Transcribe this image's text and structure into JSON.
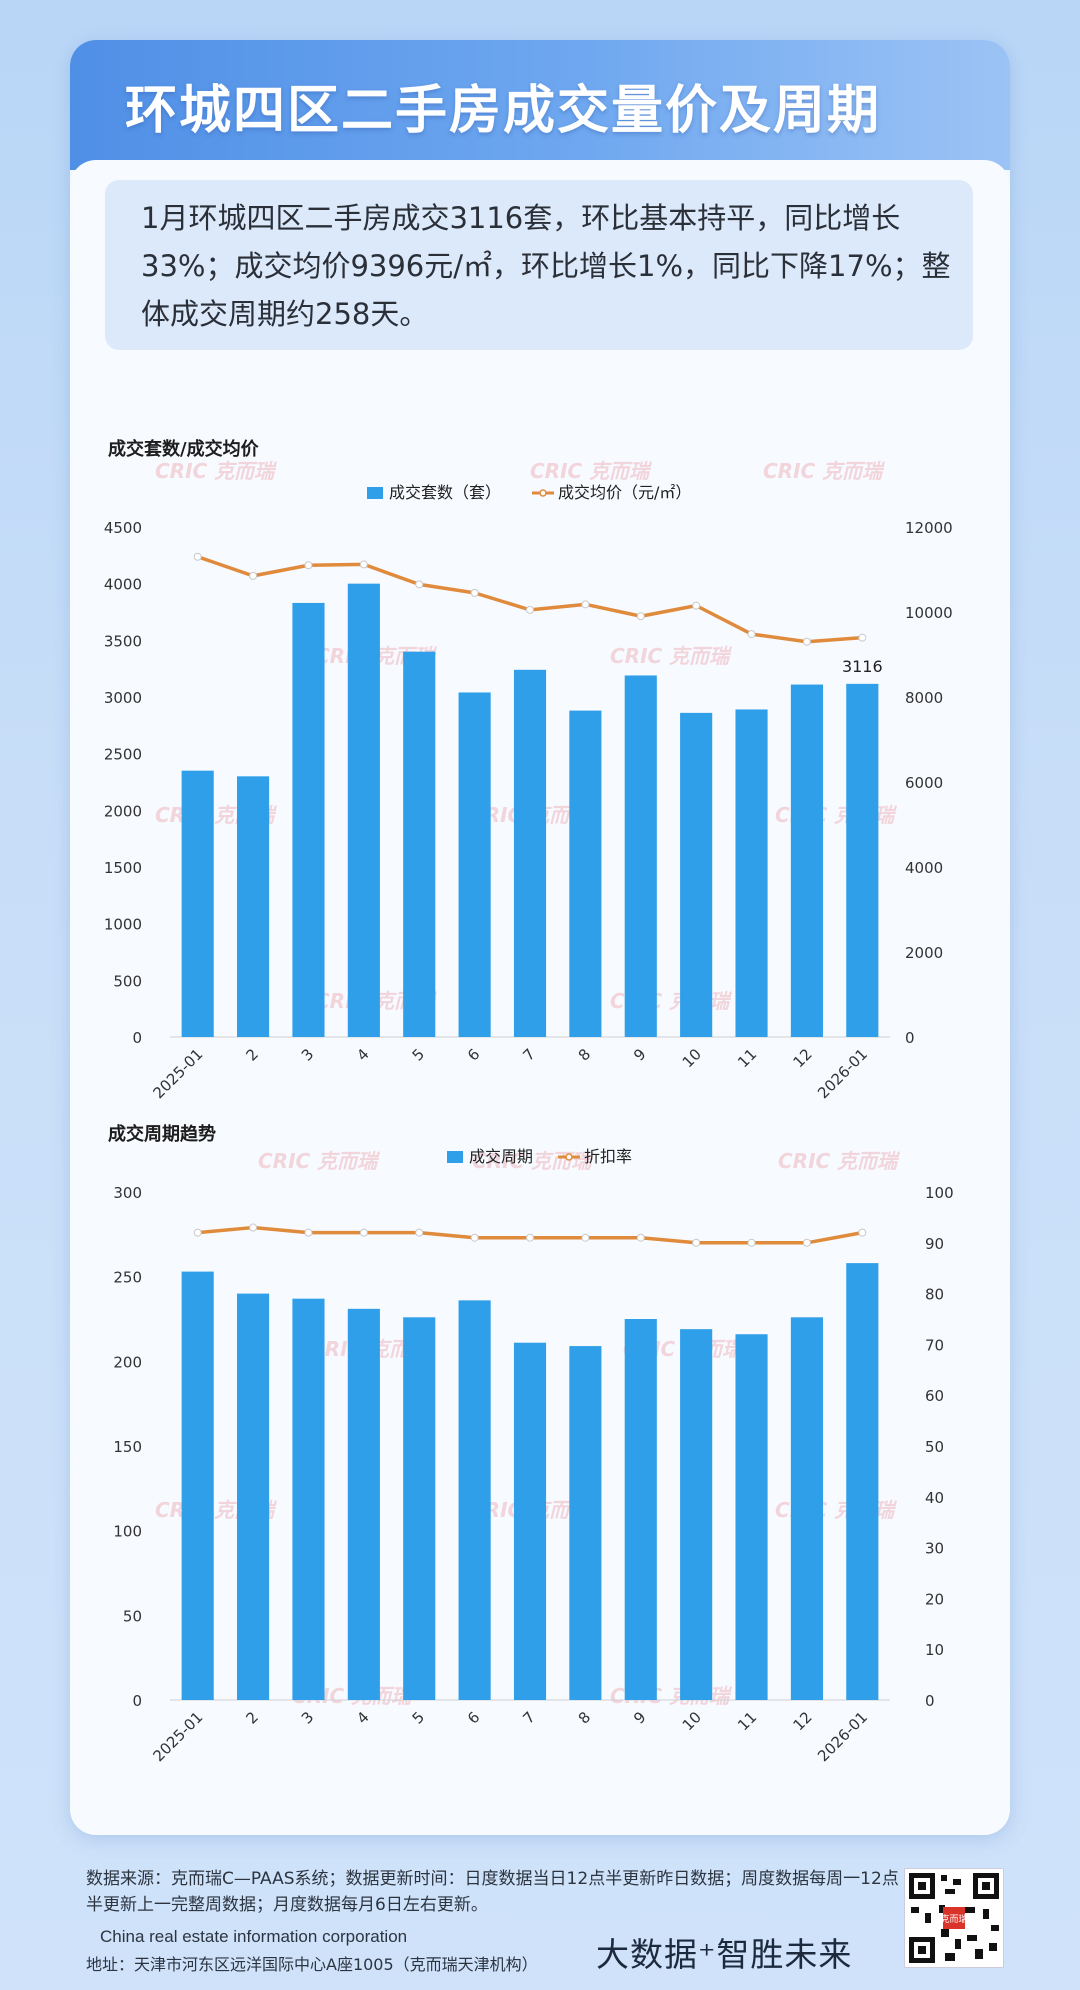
{
  "header": {
    "title": "环城四区二手房成交量价及周期"
  },
  "summary": {
    "text": "1月环城四区二手房成交3116套，环比基本持平，同比增长33%；成交均价9396元/㎡，环比增长1%，同比下降17%；整体成交周期约258天。"
  },
  "watermark": "CRIC 克而瑞",
  "colors": {
    "bar": "#2e9fe8",
    "line": "#e08a3c",
    "title_bar": "#5b97e8"
  },
  "chart_data": [
    {
      "type": "bar",
      "title": "成交套数/成交均价",
      "categories": [
        "2025-01",
        "2",
        "3",
        "4",
        "5",
        "6",
        "7",
        "8",
        "9",
        "10",
        "11",
        "12",
        "2026-01"
      ],
      "series": [
        {
          "name": "成交套数（套）",
          "type": "bar",
          "axis": "left",
          "values": [
            2350,
            2300,
            3830,
            4000,
            3400,
            3040,
            3240,
            2880,
            3190,
            2860,
            2890,
            3110,
            3116
          ]
        },
        {
          "name": "成交均价（元/㎡）",
          "type": "line",
          "axis": "right",
          "values": [
            11300,
            10850,
            11100,
            11120,
            10650,
            10450,
            10050,
            10180,
            9900,
            10150,
            9480,
            9300,
            9396
          ]
        }
      ],
      "ylim_left": [
        0,
        4500
      ],
      "yticks_left": [
        "0",
        "500",
        "1000",
        "1500",
        "2000",
        "2500",
        "3000",
        "3500",
        "4000",
        "4500"
      ],
      "ylim_right": [
        0,
        12000
      ],
      "yticks_right": [
        "0",
        "2000",
        "4000",
        "6000",
        "8000",
        "10000",
        "12000"
      ],
      "data_labels": [
        {
          "index": 12,
          "text": "3116"
        }
      ],
      "legend": "top"
    },
    {
      "type": "bar",
      "title": "成交周期趋势",
      "categories": [
        "2025-01",
        "2",
        "3",
        "4",
        "5",
        "6",
        "7",
        "8",
        "9",
        "10",
        "11",
        "12",
        "2026-01"
      ],
      "series": [
        {
          "name": "成交周期",
          "type": "bar",
          "axis": "left",
          "values": [
            253,
            240,
            237,
            231,
            226,
            236,
            211,
            209,
            225,
            219,
            216,
            226,
            258
          ]
        },
        {
          "name": "折扣率",
          "type": "line",
          "axis": "right",
          "values": [
            92,
            93,
            92,
            92,
            92,
            91,
            91,
            91,
            91,
            90,
            90,
            90,
            92
          ]
        }
      ],
      "ylim_left": [
        0,
        300
      ],
      "yticks_left": [
        "0",
        "50",
        "100",
        "150",
        "200",
        "250",
        "300"
      ],
      "ylim_right": [
        0,
        100
      ],
      "yticks_right": [
        "0",
        "10",
        "20",
        "30",
        "40",
        "50",
        "60",
        "70",
        "80",
        "90",
        "100"
      ],
      "legend": "top"
    }
  ],
  "footer": {
    "source": "数据来源：克而瑞C—PAAS系统；数据更新时间：日度数据当日12点半更新昨日数据；周度数据每周一12点半更新上一完整周数据；月度数据每月6日左右更新。",
    "company": "China real estate information corporation",
    "address": "地址：天津市河东区远洋国际中心A座1005（克而瑞天津机构）",
    "slogan": "大数据⁺智胜未来",
    "qr_badge": "克而瑞"
  }
}
